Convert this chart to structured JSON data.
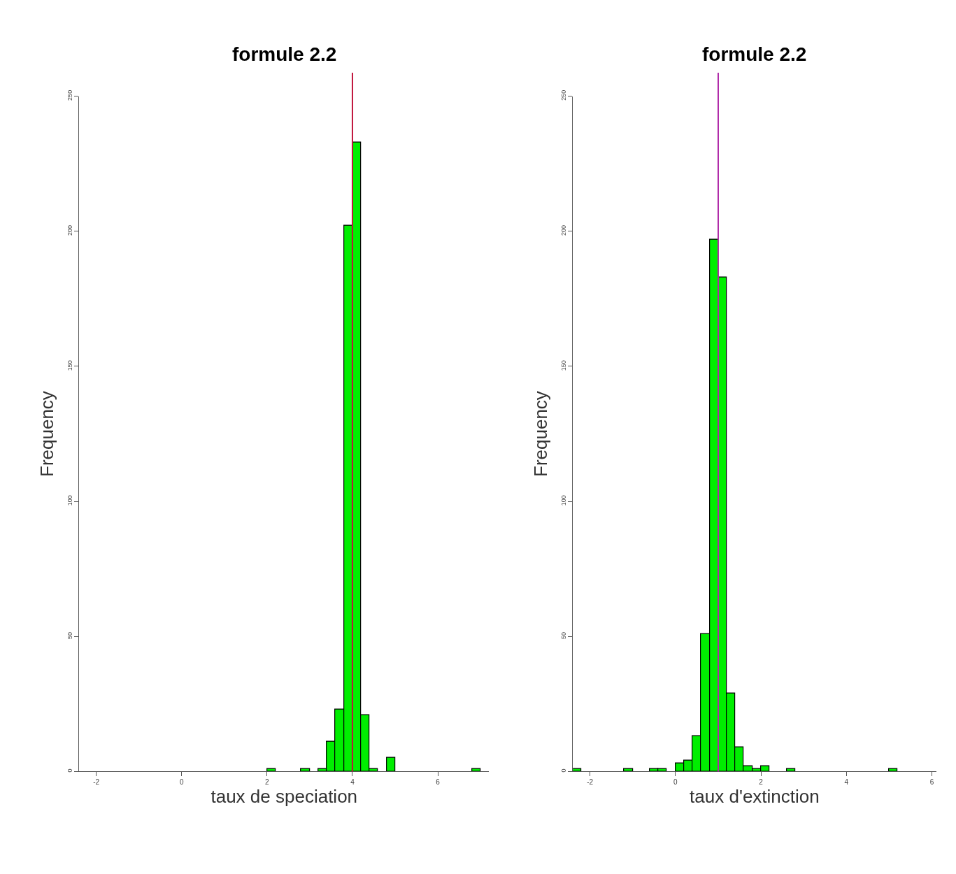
{
  "chart_data": [
    {
      "type": "histogram",
      "title": "formule 2.2",
      "xlabel": "taux de speciation",
      "ylabel": "Frequency",
      "color": "#00ee00",
      "bins": [
        2.0,
        2.2,
        2.4,
        2.6,
        2.8,
        3.0,
        3.2,
        3.4,
        3.6,
        3.8,
        4.0,
        4.2,
        4.4,
        4.6,
        4.8,
        5.0,
        5.2,
        5.4,
        5.6,
        5.8,
        6.0,
        6.2,
        6.4,
        6.6,
        6.8,
        7.0
      ],
      "values": [
        1,
        0,
        0,
        0,
        1,
        0,
        1,
        11,
        23,
        202,
        233,
        21,
        1,
        0,
        5,
        0,
        0,
        0,
        0,
        0,
        0,
        0,
        0,
        0,
        1
      ],
      "xlim": [
        -2.4,
        7.2
      ],
      "xticks": [
        -2,
        0,
        2,
        4,
        6
      ],
      "ylim": [
        0,
        250
      ],
      "yticks": [
        0,
        50,
        100,
        150,
        200,
        250
      ],
      "ref_lines": [
        {
          "axis": "x",
          "value": 4,
          "color": "#c0143c"
        }
      ]
    },
    {
      "type": "histogram",
      "title": "formule 2.2",
      "xlabel": "taux d'extinction",
      "ylabel": "Frequency",
      "color": "#00ee00",
      "bins": [
        -2.4,
        -2.2,
        -2.0,
        -1.8,
        -1.6,
        -1.4,
        -1.2,
        -1.0,
        -0.8,
        -0.6,
        -0.4,
        -0.2,
        0.0,
        0.2,
        0.4,
        0.6,
        0.8,
        1.0,
        1.2,
        1.4,
        1.6,
        1.8,
        2.0,
        2.2,
        2.4,
        2.6,
        2.8,
        3.0,
        3.2,
        3.4,
        3.6,
        3.8,
        4.0,
        4.2,
        4.4,
        4.6,
        4.8,
        5.0,
        5.2
      ],
      "values": [
        1,
        0,
        0,
        0,
        0,
        0,
        1,
        0,
        0,
        1,
        1,
        0,
        3,
        4,
        13,
        51,
        197,
        183,
        29,
        9,
        2,
        1,
        2,
        0,
        0,
        1,
        0,
        0,
        0,
        0,
        0,
        0,
        0,
        0,
        0,
        0,
        0,
        1
      ],
      "xlim": [
        -2.4,
        6.1
      ],
      "xticks": [
        -2,
        0,
        2,
        4,
        6
      ],
      "ylim": [
        0,
        250
      ],
      "yticks": [
        0,
        50,
        100,
        150,
        200,
        250
      ],
      "ref_lines": [
        {
          "axis": "x",
          "value": 1,
          "color": "#b02aa8"
        }
      ]
    }
  ]
}
